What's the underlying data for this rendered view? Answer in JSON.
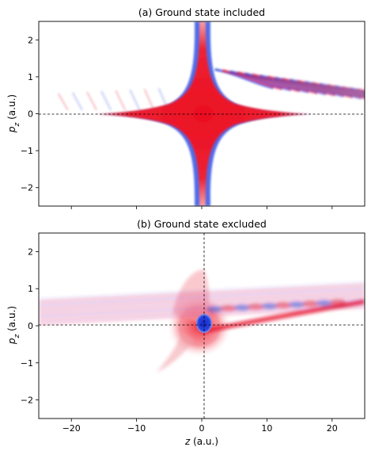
{
  "figure": {
    "xlabel_var": "z",
    "xlabel_unit": " (a.u.)"
  },
  "chart_data": [
    {
      "type": "heatmap",
      "title": "(a) Ground state included",
      "xlabel": "",
      "ylabel_var": "p",
      "ylabel_sub": "z",
      "ylabel_unit": " (a.u.)",
      "xlim": [
        -25,
        25
      ],
      "ylim": [
        -2.5,
        2.5
      ],
      "xticks": [
        -20,
        -10,
        0,
        10,
        20
      ],
      "xtick_labels": [
        "",
        "",
        "",
        "",
        ""
      ],
      "yticks": [
        -2,
        -1,
        0,
        1,
        2
      ],
      "ytick_labels": [
        "−2",
        "−1",
        "0",
        "1",
        "2"
      ],
      "reference_lines": {
        "horizontal_y": 0,
        "vertical_x": null
      },
      "colormap": "bwr",
      "positive_color": "#e8132b",
      "negative_color": "#1f3fd8",
      "zero_color": "#ffffff",
      "features": "strong positive cross-shaped peak at z=0, p=0; fringes extending to +z along positive p; blue edges at the peak boundary"
    },
    {
      "type": "heatmap",
      "title": "(b) Ground state excluded",
      "xlabel": "z (a.u.)",
      "ylabel_var": "p",
      "ylabel_sub": "z",
      "ylabel_unit": " (a.u.)",
      "xlim": [
        -25,
        25
      ],
      "ylim": [
        -2.5,
        2.5
      ],
      "xticks": [
        -20,
        -10,
        0,
        10,
        20
      ],
      "xtick_labels": [
        "−20",
        "−10",
        "0",
        "10",
        "20"
      ],
      "yticks": [
        -2,
        -1,
        0,
        1,
        2
      ],
      "ytick_labels": [
        "−2",
        "−1",
        "0",
        "1",
        "2"
      ],
      "reference_lines": {
        "horizontal_y": 0,
        "vertical_x": 0
      },
      "colormap": "bwr",
      "positive_color": "#e8132b",
      "negative_color": "#1f3fd8",
      "zero_color": "#ffffff",
      "features": "small negative blue spot at the origin; fringes and a red ridge rising from z=0 to z=25; faint stripes near p=0.8"
    }
  ]
}
